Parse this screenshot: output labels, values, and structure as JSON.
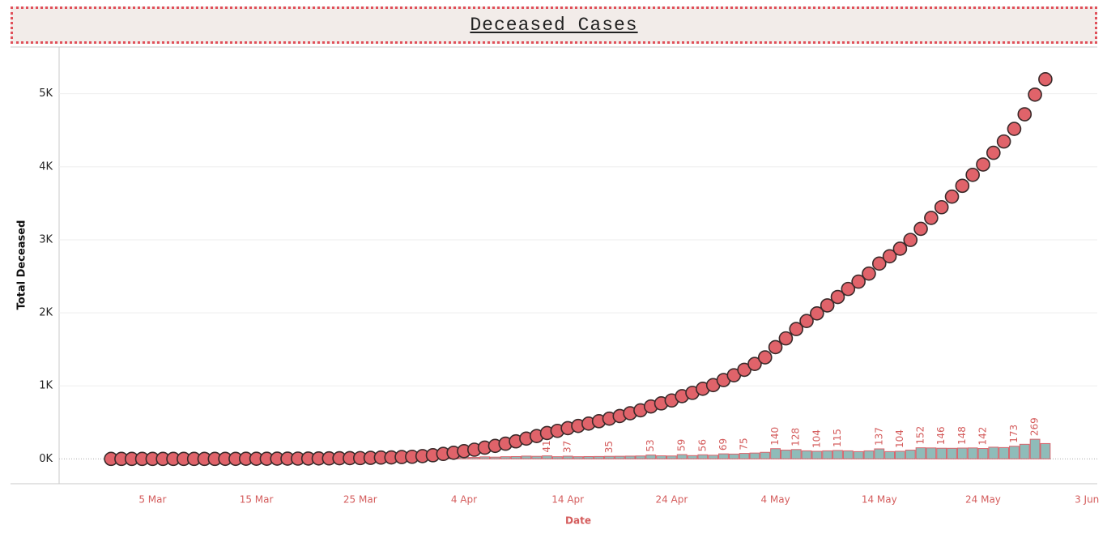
{
  "chart_data": {
    "type": "combo",
    "title": "Deceased Cases",
    "x_label": "Date",
    "y_label": "Total Deceased",
    "x": [
      "1 Mar",
      "2 Mar",
      "3 Mar",
      "4 Mar",
      "5 Mar",
      "6 Mar",
      "7 Mar",
      "8 Mar",
      "9 Mar",
      "10 Mar",
      "11 Mar",
      "12 Mar",
      "13 Mar",
      "14 Mar",
      "15 Mar",
      "16 Mar",
      "17 Mar",
      "18 Mar",
      "19 Mar",
      "20 Mar",
      "21 Mar",
      "22 Mar",
      "23 Mar",
      "24 Mar",
      "25 Mar",
      "26 Mar",
      "27 Mar",
      "28 Mar",
      "29 Mar",
      "30 Mar",
      "31 Mar",
      "1 Apr",
      "2 Apr",
      "3 Apr",
      "4 Apr",
      "5 Apr",
      "6 Apr",
      "7 Apr",
      "8 Apr",
      "9 Apr",
      "10 Apr",
      "11 Apr",
      "12 Apr",
      "13 Apr",
      "14 Apr",
      "15 Apr",
      "16 Apr",
      "17 Apr",
      "18 Apr",
      "19 Apr",
      "20 Apr",
      "21 Apr",
      "22 Apr",
      "23 Apr",
      "24 Apr",
      "25 Apr",
      "26 Apr",
      "27 Apr",
      "28 Apr",
      "29 Apr",
      "30 Apr",
      "1 May",
      "2 May",
      "3 May",
      "4 May",
      "5 May",
      "6 May",
      "7 May",
      "8 May",
      "9 May",
      "10 May",
      "11 May",
      "12 May",
      "13 May",
      "14 May",
      "15 May",
      "16 May",
      "17 May",
      "18 May",
      "19 May",
      "20 May",
      "21 May",
      "22 May",
      "23 May",
      "24 May",
      "25 May",
      "26 May",
      "27 May",
      "28 May",
      "29 May",
      "30 May"
    ],
    "xlim": [
      "25 Feb",
      "4 Jun"
    ],
    "xticks": [
      "5 Mar",
      "15 Mar",
      "25 Mar",
      "4 Apr",
      "14 Apr",
      "24 Apr",
      "4 May",
      "14 May",
      "24 May",
      "3 Jun"
    ],
    "ylim": [
      -340,
      5640
    ],
    "yticks": [
      {
        "value": 0,
        "label": "0K"
      },
      {
        "value": 1000,
        "label": "1K"
      },
      {
        "value": 2000,
        "label": "2K"
      },
      {
        "value": 3000,
        "label": "3K"
      },
      {
        "value": 4000,
        "label": "4K"
      },
      {
        "value": 5000,
        "label": "5K"
      }
    ],
    "grid": true,
    "series": [
      {
        "type": "bar",
        "color": "#8fbcb9",
        "edge_color": "#d9636b",
        "values": [
          0,
          0,
          0,
          0,
          0,
          0,
          0,
          0,
          0,
          0,
          0,
          1,
          0,
          1,
          0,
          0,
          1,
          0,
          1,
          1,
          1,
          1,
          2,
          1,
          1,
          3,
          4,
          2,
          5,
          4,
          9,
          12,
          18,
          16,
          22,
          20,
          28,
          24,
          30,
          32,
          38,
          35,
          41,
          30,
          37,
          30,
          32,
          33,
          35,
          36,
          38,
          40,
          53,
          42,
          40,
          59,
          45,
          56,
          50,
          69,
          66,
          75,
          80,
          90,
          140,
          120,
          128,
          110,
          104,
          110,
          115,
          110,
          100,
          110,
          137,
          100,
          104,
          120,
          152,
          150,
          146,
          145,
          148,
          150,
          142,
          160,
          155,
          173,
          200,
          269,
          210
        ],
        "value_labels": [
          null,
          null,
          null,
          null,
          null,
          null,
          null,
          null,
          null,
          null,
          null,
          null,
          null,
          null,
          null,
          null,
          null,
          null,
          null,
          null,
          null,
          null,
          null,
          null,
          null,
          null,
          null,
          null,
          null,
          "4",
          null,
          null,
          null,
          null,
          null,
          null,
          null,
          null,
          null,
          null,
          null,
          null,
          "41",
          null,
          "37",
          null,
          null,
          null,
          "35",
          null,
          null,
          null,
          "53",
          null,
          null,
          "59",
          null,
          "56",
          null,
          "69",
          null,
          "75",
          null,
          null,
          "140",
          null,
          "128",
          null,
          "104",
          null,
          "115",
          null,
          null,
          null,
          "137",
          null,
          "104",
          null,
          "152",
          null,
          "146",
          null,
          "148",
          null,
          "142",
          null,
          null,
          "173",
          null,
          "269",
          null
        ]
      },
      {
        "type": "scatter",
        "color": "#e0636a",
        "edge_color": "#3a2a2a",
        "values": [
          0,
          0,
          0,
          0,
          0,
          0,
          0,
          0,
          0,
          0,
          0,
          1,
          1,
          2,
          2,
          2,
          3,
          3,
          4,
          5,
          6,
          7,
          9,
          10,
          11,
          14,
          18,
          20,
          25,
          29,
          38,
          50,
          68,
          84,
          106,
          126,
          154,
          178,
          208,
          240,
          278,
          313,
          354,
          384,
          421,
          451,
          483,
          516,
          551,
          587,
          625,
          665,
          718,
          760,
          800,
          859,
          904,
          960,
          1010,
          1079,
          1145,
          1220,
          1300,
          1390,
          1530,
          1650,
          1778,
          1888,
          1992,
          2102,
          2217,
          2327,
          2427,
          2537,
          2674,
          2774,
          2878,
          2998,
          3150,
          3300,
          3446,
          3591,
          3739,
          3889,
          4031,
          4191,
          4346,
          4519,
          4719,
          4988,
          5198
        ]
      }
    ]
  }
}
